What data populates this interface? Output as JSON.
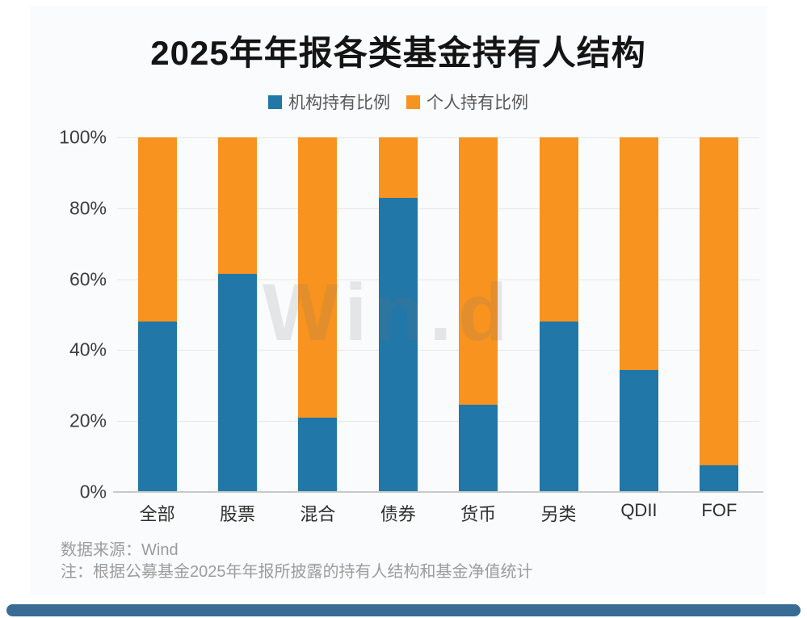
{
  "title": "2025年年报各类基金持有人结构",
  "legend": [
    {
      "label": "机构持有比例",
      "color": "#2077a8"
    },
    {
      "label": "个人持有比例",
      "color": "#f7931e"
    }
  ],
  "chart_data": {
    "type": "bar",
    "stacked": true,
    "categories": [
      "全部",
      "股票",
      "混合",
      "债券",
      "货币",
      "另类",
      "QDII",
      "FOF"
    ],
    "series": [
      {
        "name": "机构持有比例",
        "color": "#2077a8",
        "values": [
          48,
          61.5,
          21,
          83,
          24.5,
          48,
          34.5,
          7.5
        ]
      },
      {
        "name": "个人持有比例",
        "color": "#f7931e",
        "values": [
          52,
          38.5,
          79,
          17,
          75.5,
          52,
          65.5,
          92.5
        ]
      }
    ],
    "title": "2025年年报各类基金持有人结构",
    "xlabel": "",
    "ylabel": "",
    "ylim": [
      0,
      100
    ],
    "yticks": [
      "100%",
      "80%",
      "60%",
      "40%",
      "20%",
      "0%"
    ],
    "grid": true,
    "legend_position": "top"
  },
  "watermark": "Win.d",
  "footer": {
    "source": "数据来源：Wind",
    "note": "注：根据公募基金2025年年报所披露的持有人结构和基金净值统计"
  },
  "ui": {
    "bottom_bar_color": "#3a6b94",
    "card_background": "#fafbfc"
  }
}
